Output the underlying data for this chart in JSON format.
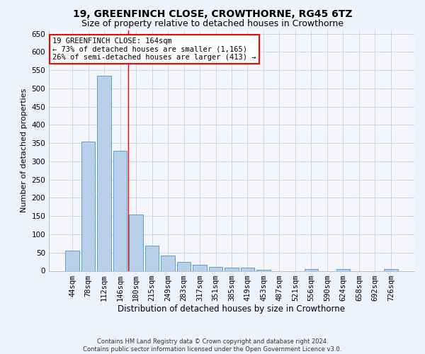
{
  "title": "19, GREENFINCH CLOSE, CROWTHORNE, RG45 6TZ",
  "subtitle": "Size of property relative to detached houses in Crowthorne",
  "xlabel": "Distribution of detached houses by size in Crowthorne",
  "ylabel": "Number of detached properties",
  "categories": [
    "44sqm",
    "78sqm",
    "112sqm",
    "146sqm",
    "180sqm",
    "215sqm",
    "249sqm",
    "283sqm",
    "317sqm",
    "351sqm",
    "385sqm",
    "419sqm",
    "453sqm",
    "487sqm",
    "521sqm",
    "556sqm",
    "590sqm",
    "624sqm",
    "658sqm",
    "692sqm",
    "726sqm"
  ],
  "values": [
    55,
    355,
    535,
    330,
    155,
    68,
    42,
    24,
    17,
    10,
    8,
    8,
    3,
    0,
    0,
    4,
    0,
    4,
    0,
    0,
    4
  ],
  "bar_color": "#b8d0e8",
  "bar_edge_color": "#5a9fd4",
  "vline_x": 3.5,
  "vline_color": "red",
  "annotation_text": "19 GREENFINCH CLOSE: 164sqm\n← 73% of detached houses are smaller (1,165)\n26% of semi-detached houses are larger (413) →",
  "annotation_box_color": "white",
  "annotation_box_edge_color": "red",
  "ylim": [
    0,
    660
  ],
  "yticks": [
    0,
    50,
    100,
    150,
    200,
    250,
    300,
    350,
    400,
    450,
    500,
    550,
    600,
    650
  ],
  "footer_line1": "Contains HM Land Registry data © Crown copyright and database right 2024.",
  "footer_line2": "Contains public sector information licensed under the Open Government Licence v3.0.",
  "bg_color": "#eef2fb",
  "plot_bg_color": "#f5f7fd",
  "grid_color": "#c8d0e8",
  "title_fontsize": 10,
  "subtitle_fontsize": 9,
  "ann_fontsize": 7.5,
  "xlabel_fontsize": 8.5,
  "ylabel_fontsize": 8,
  "tick_fontsize": 7.5,
  "footer_fontsize": 6
}
